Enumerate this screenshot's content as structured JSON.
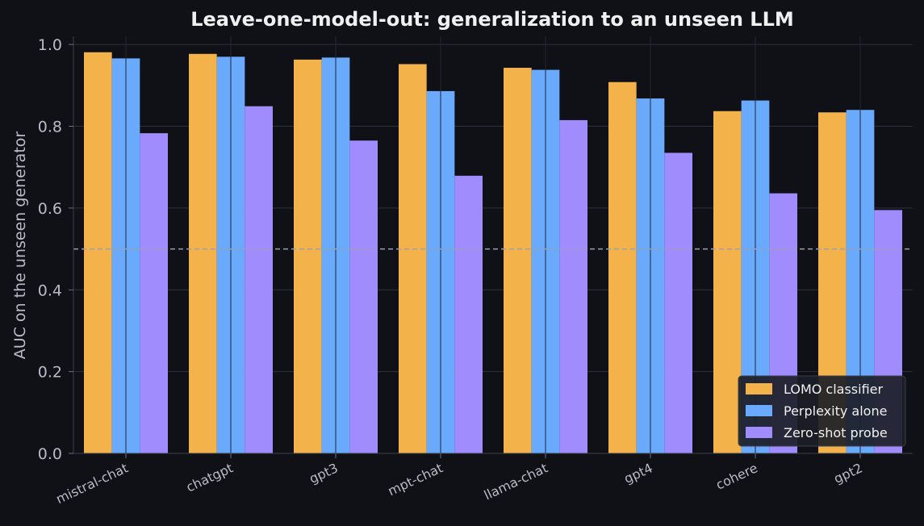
{
  "chart_data": {
    "type": "bar",
    "title": "Leave-one-model-out: generalization to an unseen LLM",
    "xlabel": "",
    "ylabel": "AUC on the unseen generator",
    "ylim": [
      0,
      1.02
    ],
    "yticks": [
      0.0,
      0.2,
      0.4,
      0.6,
      0.8,
      1.0
    ],
    "ytick_labels": [
      "0.0",
      "0.2",
      "0.4",
      "0.6",
      "0.8",
      "1.0"
    ],
    "grid": true,
    "reference_line": 0.5,
    "legend_position": "bottom-right",
    "categories": [
      "mistral-chat",
      "chatgpt",
      "gpt3",
      "mpt-chat",
      "llama-chat",
      "gpt4",
      "cohere",
      "gpt2"
    ],
    "series": [
      {
        "name": "LOMO classifier",
        "color": "#f4b24a",
        "values": [
          0.981,
          0.977,
          0.963,
          0.952,
          0.943,
          0.908,
          0.837,
          0.834
        ]
      },
      {
        "name": "Perplexity alone",
        "color": "#6aaafc",
        "values": [
          0.966,
          0.97,
          0.968,
          0.886,
          0.938,
          0.868,
          0.863,
          0.84
        ]
      },
      {
        "name": "Zero-shot probe",
        "color": "#a08cfc",
        "values": [
          0.783,
          0.849,
          0.765,
          0.679,
          0.815,
          0.735,
          0.636,
          0.595
        ]
      }
    ]
  }
}
